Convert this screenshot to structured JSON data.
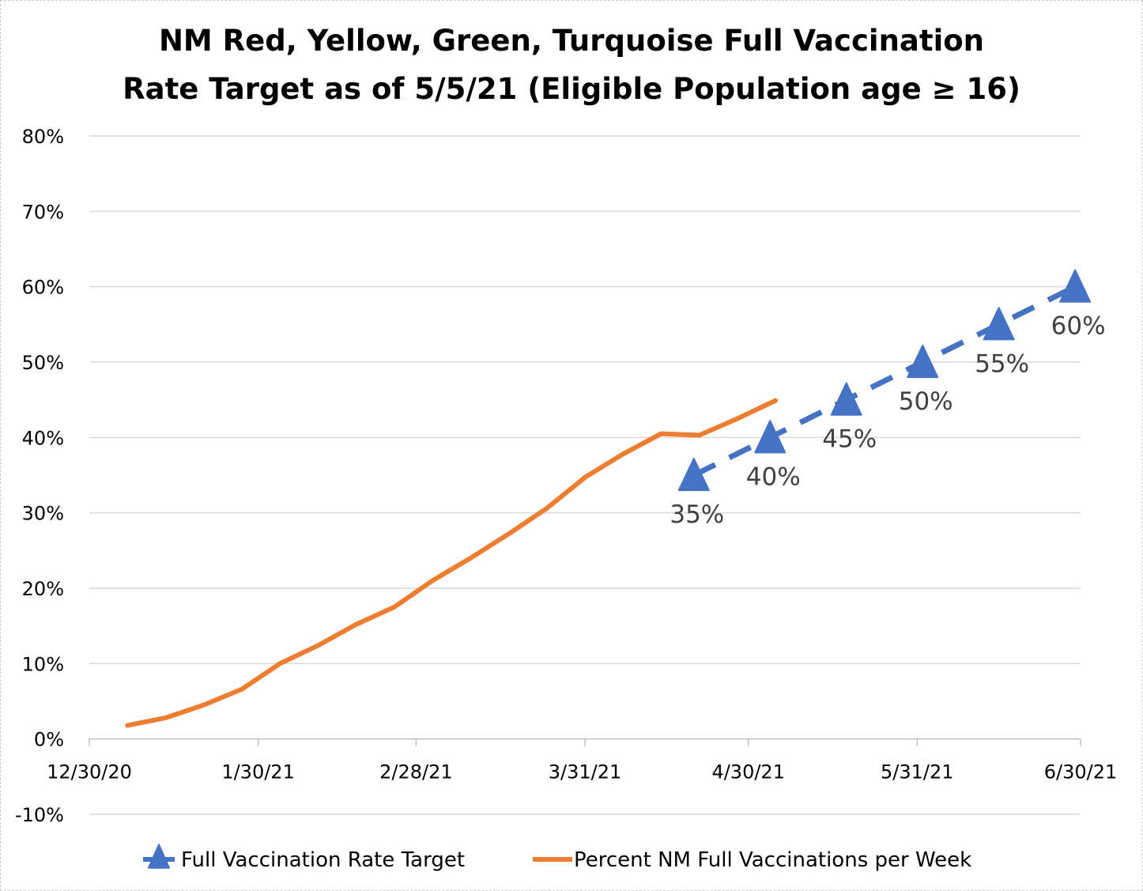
{
  "chart_data": {
    "type": "line",
    "title_lines": [
      "NM Red, Yellow, Green, Turquoise Full Vaccination",
      "Rate Target as of 5/5/21 (Eligible Population age ≥ 16)"
    ],
    "ylim": [
      -0.1,
      0.8
    ],
    "y_ticks": [
      {
        "value": 0.8,
        "label": "80%"
      },
      {
        "value": 0.7,
        "label": "70%"
      },
      {
        "value": 0.6,
        "label": "60%"
      },
      {
        "value": 0.5,
        "label": "50%"
      },
      {
        "value": 0.4,
        "label": "40%"
      },
      {
        "value": 0.3,
        "label": "30%"
      },
      {
        "value": 0.2,
        "label": "20%"
      },
      {
        "value": 0.1,
        "label": "10%"
      },
      {
        "value": 0.0,
        "label": "0%"
      },
      {
        "value": -0.1,
        "label": "-10%"
      }
    ],
    "x_axis": {
      "unit": "days since 12/30/20",
      "range": [
        0,
        182
      ],
      "ticks": [
        {
          "value": 0,
          "label": "12/30/20"
        },
        {
          "value": 31,
          "label": "1/30/21"
        },
        {
          "value": 60,
          "label": "2/28/21"
        },
        {
          "value": 91,
          "label": "3/31/21"
        },
        {
          "value": 121,
          "label": "4/30/21"
        },
        {
          "value": 152,
          "label": "5/31/21"
        },
        {
          "value": 182,
          "label": "6/30/21"
        }
      ]
    },
    "series": [
      {
        "name": "Percent NM Full  Vaccinations per Week",
        "color": "#ED7D31",
        "style": "solid",
        "points": [
          {
            "x": 7,
            "y": 0.018
          },
          {
            "x": 14,
            "y": 0.028
          },
          {
            "x": 21,
            "y": 0.045
          },
          {
            "x": 28,
            "y": 0.066
          },
          {
            "x": 35,
            "y": 0.1
          },
          {
            "x": 42,
            "y": 0.124
          },
          {
            "x": 49,
            "y": 0.152
          },
          {
            "x": 56,
            "y": 0.175
          },
          {
            "x": 63,
            "y": 0.21
          },
          {
            "x": 70,
            "y": 0.24
          },
          {
            "x": 77,
            "y": 0.272
          },
          {
            "x": 84,
            "y": 0.306
          },
          {
            "x": 91,
            "y": 0.347
          },
          {
            "x": 98,
            "y": 0.378
          },
          {
            "x": 105,
            "y": 0.405
          },
          {
            "x": 112,
            "y": 0.403
          },
          {
            "x": 119,
            "y": 0.425
          },
          {
            "x": 126,
            "y": 0.449
          }
        ]
      },
      {
        "name": "Full Vaccination Rate Target",
        "color": "#4472C4",
        "style": "dashed",
        "marker": "triangle",
        "points": [
          {
            "x": 111,
            "y": 0.35,
            "label": "35%"
          },
          {
            "x": 125,
            "y": 0.4,
            "label": "40%"
          },
          {
            "x": 139,
            "y": 0.45,
            "label": "45%"
          },
          {
            "x": 153,
            "y": 0.5,
            "label": "50%"
          },
          {
            "x": 167,
            "y": 0.55,
            "label": "55%"
          },
          {
            "x": 181,
            "y": 0.6,
            "label": "60%"
          }
        ]
      }
    ],
    "legend": {
      "position": "bottom",
      "items": [
        {
          "label": "Full Vaccination Rate Target",
          "color": "#4472C4",
          "marker": "triangle",
          "style": "dashed"
        },
        {
          "label": "Percent NM Full  Vaccinations per Week",
          "color": "#ED7D31",
          "marker": "none",
          "style": "solid"
        }
      ]
    },
    "grid": true
  }
}
